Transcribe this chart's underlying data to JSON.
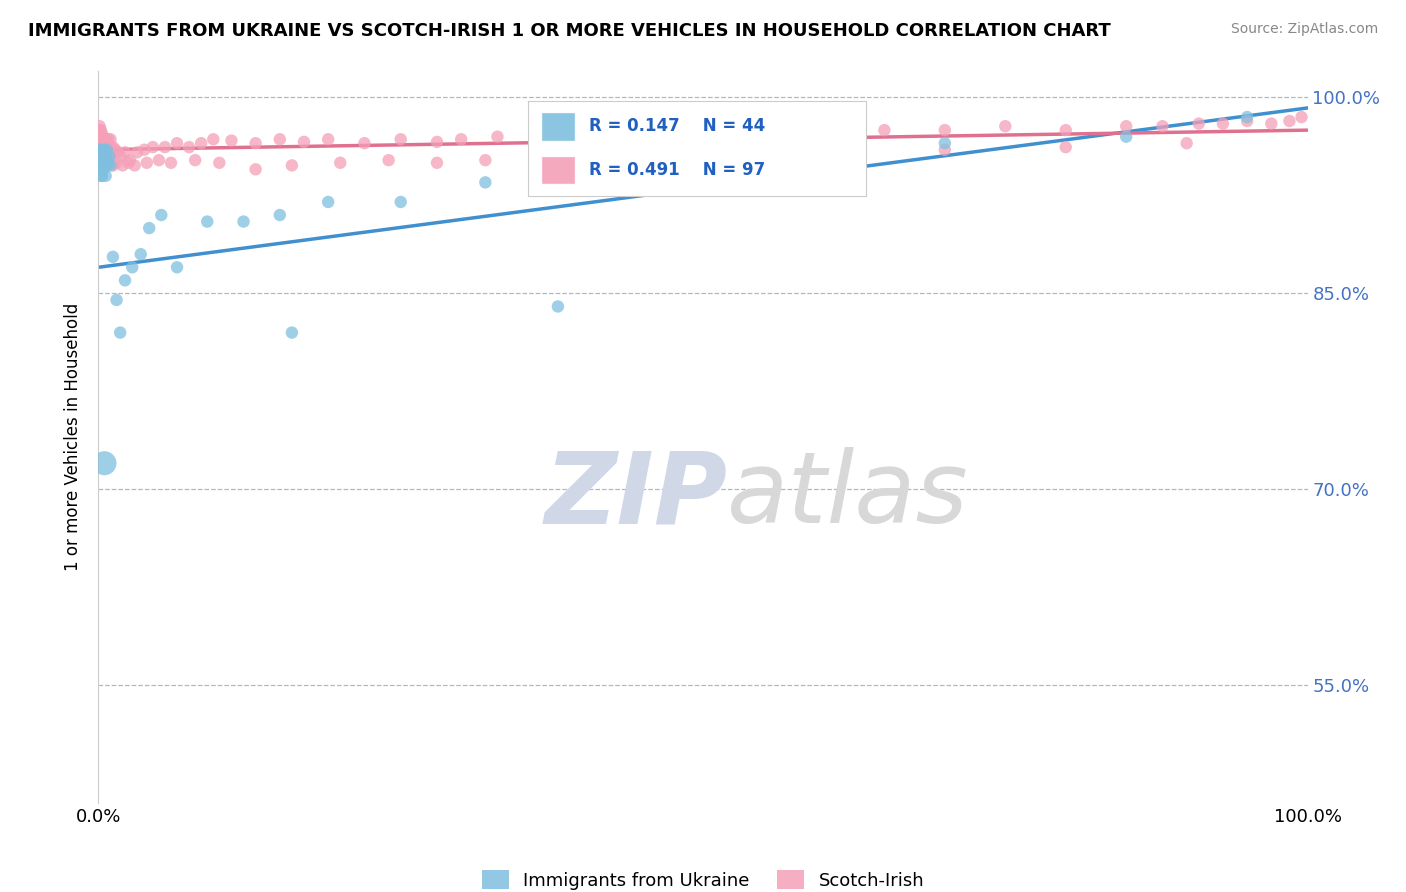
{
  "title": "IMMIGRANTS FROM UKRAINE VS SCOTCH-IRISH 1 OR MORE VEHICLES IN HOUSEHOLD CORRELATION CHART",
  "source": "Source: ZipAtlas.com",
  "ylabel": "1 or more Vehicles in Household",
  "xlim": [
    0.0,
    1.0
  ],
  "ylim": [
    0.46,
    1.02
  ],
  "ytick_vals": [
    0.55,
    0.7,
    0.85,
    1.0
  ],
  "ytick_labels": [
    "55.0%",
    "70.0%",
    "85.0%",
    "100.0%"
  ],
  "xtick_vals": [
    0.0,
    1.0
  ],
  "xtick_labels": [
    "0.0%",
    "100.0%"
  ],
  "legend_labels": [
    "Immigrants from Ukraine",
    "Scotch-Irish"
  ],
  "blue_R": 0.147,
  "blue_N": 44,
  "pink_R": 0.491,
  "pink_N": 97,
  "blue_color": "#7fbfdf",
  "pink_color": "#f4a0b8",
  "blue_line_color": "#4090d0",
  "pink_line_color": "#e07090",
  "watermark_zip": "ZIP",
  "watermark_atlas": "atlas",
  "blue_line_x0": 0.0,
  "blue_line_y0": 0.87,
  "blue_line_x1": 1.0,
  "blue_line_y1": 0.992,
  "pink_line_x0": 0.0,
  "pink_line_y0": 0.96,
  "pink_line_x1": 1.0,
  "pink_line_y1": 0.975,
  "blue_pts_x": [
    0.0008,
    0.001,
    0.0012,
    0.0015,
    0.002,
    0.002,
    0.002,
    0.003,
    0.003,
    0.003,
    0.004,
    0.004,
    0.005,
    0.005,
    0.006,
    0.006,
    0.007,
    0.007,
    0.008,
    0.009,
    0.01,
    0.012,
    0.015,
    0.018,
    0.022,
    0.028,
    0.035,
    0.042,
    0.052,
    0.065,
    0.09,
    0.12,
    0.15,
    0.19,
    0.25,
    0.32,
    0.42,
    0.55,
    0.7,
    0.85,
    0.95,
    0.005,
    0.16,
    0.38
  ],
  "blue_pts_y": [
    0.96,
    0.95,
    0.945,
    0.955,
    0.96,
    0.95,
    0.94,
    0.955,
    0.948,
    0.94,
    0.958,
    0.945,
    0.96,
    0.95,
    0.955,
    0.94,
    0.96,
    0.948,
    0.95,
    0.955,
    0.948,
    0.878,
    0.845,
    0.82,
    0.86,
    0.87,
    0.88,
    0.9,
    0.91,
    0.87,
    0.905,
    0.905,
    0.91,
    0.92,
    0.92,
    0.935,
    0.945,
    0.96,
    0.965,
    0.97,
    0.985,
    0.72,
    0.82,
    0.84
  ],
  "blue_pts_sizes": [
    80,
    80,
    80,
    80,
    80,
    80,
    80,
    80,
    80,
    80,
    80,
    80,
    80,
    80,
    80,
    80,
    80,
    80,
    80,
    80,
    80,
    80,
    80,
    80,
    80,
    80,
    80,
    80,
    80,
    80,
    80,
    80,
    80,
    80,
    80,
    80,
    80,
    80,
    80,
    80,
    80,
    300,
    80,
    80
  ],
  "pink_pts_x": [
    0.0005,
    0.001,
    0.001,
    0.001,
    0.0015,
    0.002,
    0.002,
    0.002,
    0.003,
    0.003,
    0.003,
    0.004,
    0.004,
    0.004,
    0.005,
    0.005,
    0.005,
    0.006,
    0.006,
    0.007,
    0.007,
    0.008,
    0.008,
    0.009,
    0.01,
    0.01,
    0.012,
    0.014,
    0.016,
    0.018,
    0.022,
    0.026,
    0.032,
    0.038,
    0.045,
    0.055,
    0.065,
    0.075,
    0.085,
    0.095,
    0.11,
    0.13,
    0.15,
    0.17,
    0.19,
    0.22,
    0.25,
    0.28,
    0.3,
    0.33,
    0.38,
    0.42,
    0.45,
    0.5,
    0.55,
    0.6,
    0.65,
    0.7,
    0.75,
    0.8,
    0.85,
    0.88,
    0.91,
    0.93,
    0.95,
    0.97,
    0.985,
    0.995,
    0.002,
    0.003,
    0.004,
    0.006,
    0.008,
    0.012,
    0.015,
    0.02,
    0.025,
    0.03,
    0.04,
    0.05,
    0.06,
    0.08,
    0.1,
    0.13,
    0.16,
    0.2,
    0.24,
    0.28,
    0.32,
    0.38,
    0.44,
    0.5,
    0.55,
    0.6,
    0.7,
    0.8,
    0.9
  ],
  "pink_pts_y": [
    0.975,
    0.978,
    0.97,
    0.965,
    0.975,
    0.975,
    0.968,
    0.96,
    0.972,
    0.965,
    0.958,
    0.97,
    0.963,
    0.955,
    0.968,
    0.96,
    0.952,
    0.965,
    0.958,
    0.968,
    0.96,
    0.968,
    0.96,
    0.962,
    0.968,
    0.958,
    0.962,
    0.96,
    0.958,
    0.955,
    0.958,
    0.952,
    0.958,
    0.96,
    0.962,
    0.962,
    0.965,
    0.962,
    0.965,
    0.968,
    0.967,
    0.965,
    0.968,
    0.966,
    0.968,
    0.965,
    0.968,
    0.966,
    0.968,
    0.97,
    0.968,
    0.97,
    0.972,
    0.972,
    0.975,
    0.972,
    0.975,
    0.975,
    0.978,
    0.975,
    0.978,
    0.978,
    0.98,
    0.98,
    0.982,
    0.98,
    0.982,
    0.985,
    0.96,
    0.958,
    0.955,
    0.95,
    0.952,
    0.948,
    0.95,
    0.948,
    0.95,
    0.948,
    0.95,
    0.952,
    0.95,
    0.952,
    0.95,
    0.945,
    0.948,
    0.95,
    0.952,
    0.95,
    0.952,
    0.95,
    0.952,
    0.955,
    0.955,
    0.958,
    0.96,
    0.962,
    0.965
  ],
  "pink_pts_sizes": [
    80,
    80,
    80,
    80,
    80,
    80,
    80,
    80,
    80,
    80,
    80,
    80,
    80,
    80,
    80,
    80,
    80,
    80,
    80,
    80,
    80,
    80,
    80,
    80,
    80,
    80,
    80,
    80,
    80,
    80,
    80,
    80,
    80,
    80,
    80,
    80,
    80,
    80,
    80,
    80,
    80,
    80,
    80,
    80,
    80,
    80,
    80,
    80,
    80,
    80,
    80,
    80,
    80,
    80,
    80,
    80,
    80,
    80,
    80,
    80,
    80,
    80,
    80,
    80,
    80,
    80,
    80,
    80,
    80,
    80,
    80,
    80,
    80,
    80,
    80,
    80,
    80,
    80,
    80,
    80,
    80,
    80,
    80,
    80,
    80,
    80,
    80,
    80,
    80,
    80,
    80,
    80,
    80,
    80,
    80,
    80,
    80
  ]
}
